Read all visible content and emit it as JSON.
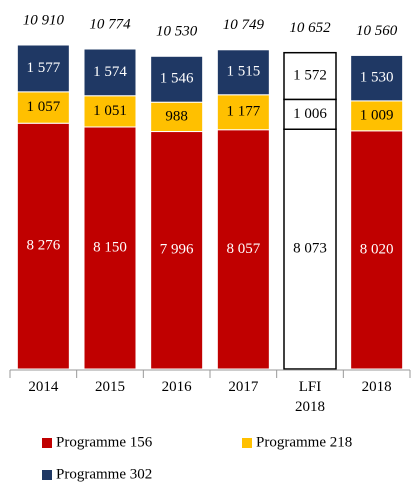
{
  "chart_data": {
    "type": "stacked_bar",
    "categories": [
      "2014",
      "2015",
      "2016",
      "2017",
      "LFI 2018",
      "2018"
    ],
    "series": [
      {
        "name": "Programme 156",
        "color": "#c00000",
        "colors": [
          "#c00000",
          "#c00000",
          "#c00000",
          "#c00000",
          "#ffffff",
          "#c00000"
        ],
        "values": [
          8276,
          8150,
          7996,
          8057,
          8073,
          8020
        ],
        "value_labels": [
          "8 276",
          "8 150",
          "7 996",
          "8 057",
          "8 073",
          "8 020"
        ]
      },
      {
        "name": "Programme 218",
        "color": "#ffc000",
        "colors": [
          "#ffc000",
          "#ffc000",
          "#ffc000",
          "#ffc000",
          "#ffffff",
          "#ffc000"
        ],
        "values": [
          1057,
          1051,
          988,
          1177,
          1006,
          1009
        ],
        "value_labels": [
          "1 057",
          "1 051",
          "988",
          "1 177",
          "1 006",
          "1 009"
        ]
      },
      {
        "name": "Programme 302",
        "color": "#1f3864",
        "colors": [
          "#1f3864",
          "#1f3864",
          "#1f3864",
          "#1f3864",
          "#ffffff",
          "#1f3864"
        ],
        "values": [
          1577,
          1574,
          1546,
          1515,
          1572,
          1530
        ],
        "value_labels": [
          "1 577",
          "1 574",
          "1 546",
          "1 515",
          "1 572",
          "1 530"
        ]
      }
    ],
    "totals": [
      10910,
      10774,
      10530,
      10749,
      10652,
      10560
    ],
    "total_labels": [
      "10 910",
      "10 774",
      "10 530",
      "10 749",
      "10 652",
      "10 560"
    ]
  }
}
